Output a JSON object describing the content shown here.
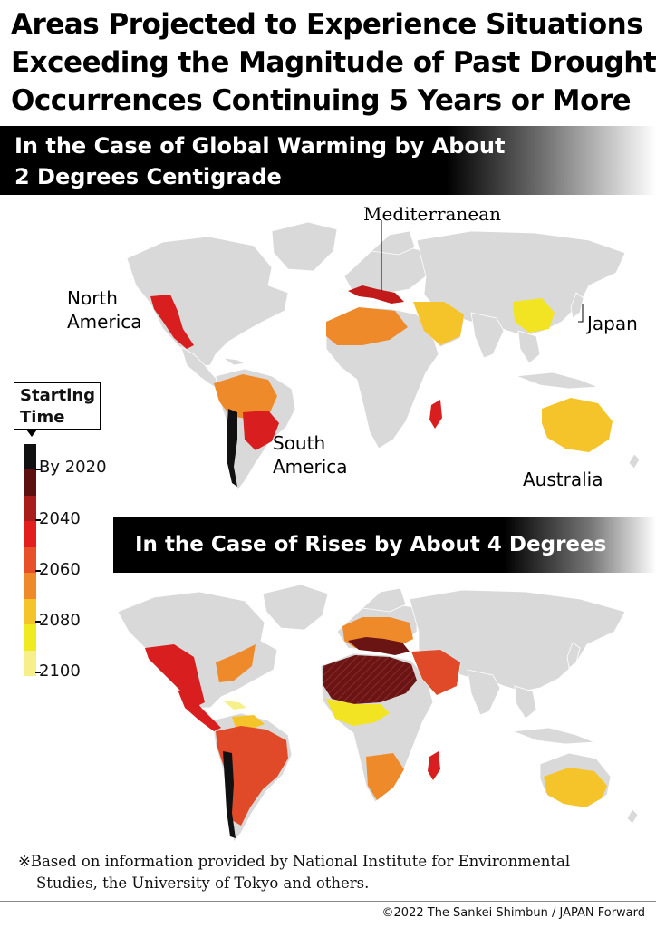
{
  "title": {
    "line1": "Areas Projected to Experience Situations",
    "line2": "Exceeding the Magnitude of Past Drought",
    "line3": "Occurrences Continuing 5 Years or More"
  },
  "scenario1": {
    "heading_line1": "In the Case of Global Warming by About",
    "heading_line2": "2 Degrees Centigrade"
  },
  "scenario2": {
    "heading": "In the Case of Rises by About 4 Degrees"
  },
  "map_labels": {
    "mediterranean": "Mediterranean",
    "north_america_1": "North",
    "north_america_2": "America",
    "south_america_1": "South",
    "south_america_2": "America",
    "japan": "Japan",
    "australia": "Australia"
  },
  "legend": {
    "title_line1": "Starting",
    "title_line2": "Time",
    "labels": [
      "By 2020",
      "2040",
      "2060",
      "2080",
      "2100"
    ],
    "colors": [
      "#111111",
      "#5c1010",
      "#a81c1c",
      "#e21e1e",
      "#e8502a",
      "#ee8a2a",
      "#f5c42a",
      "#f2ea20",
      "#f7f08a"
    ]
  },
  "colors": {
    "land": "#d9d9d9",
    "by2020": "#111111",
    "c2030": "#6a1414",
    "c2040": "#d81e1e",
    "c2050": "#e04a28",
    "c2060": "#ee8a2a",
    "c2070": "#f5c42a",
    "c2080": "#f2e422",
    "c2100": "#f7f08a"
  },
  "footnote": {
    "line1": "※Based on information provided by National Institute for Environmental",
    "line2": "Studies, the University of Tokyo and others."
  },
  "copyright": "©2022 The Sankei Shimbun / JAPAN Forward"
}
